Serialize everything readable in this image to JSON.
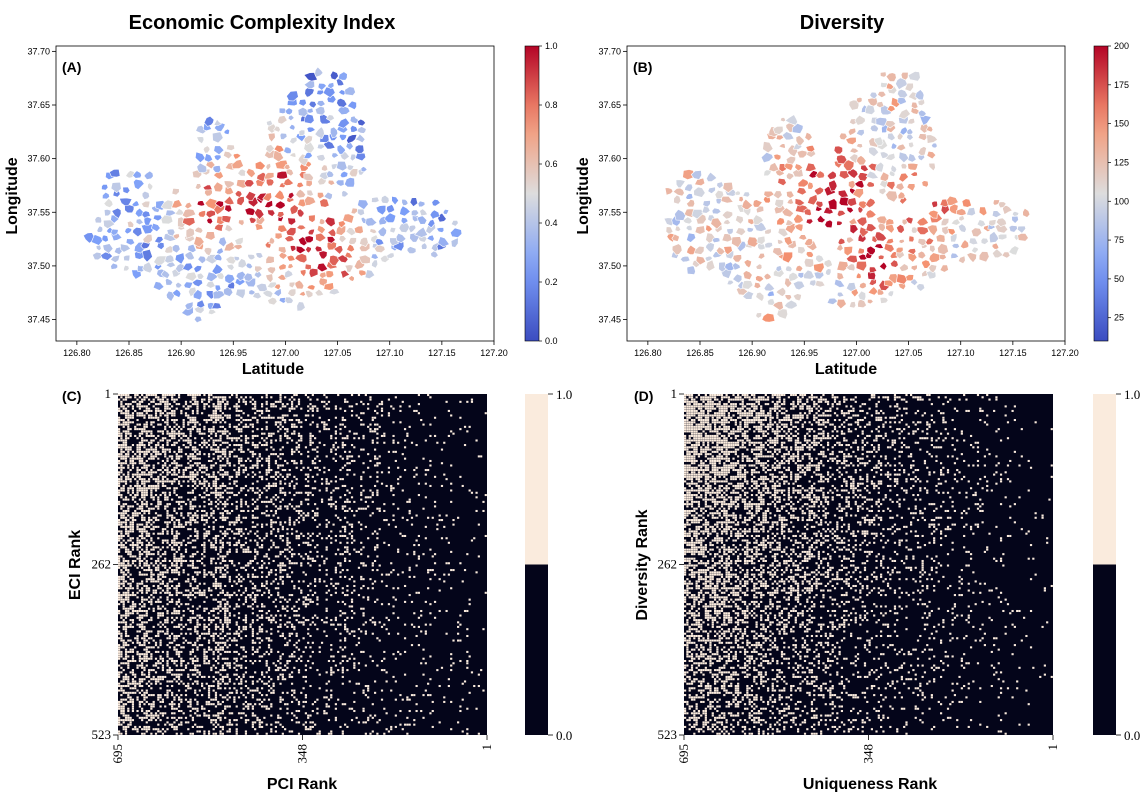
{
  "chart_data": [
    {
      "type": "choropleth-map",
      "title": "Economic  Complexity Index",
      "panel_label": "(A)",
      "xlabel": "Latitude",
      "ylabel": "Longitude",
      "xticks": [
        "126.80",
        "126.85",
        "126.90",
        "126.95",
        "127.00",
        "127.05",
        "127.10",
        "127.15",
        "127.20"
      ],
      "yticks": [
        "37.70",
        "37.65",
        "37.60",
        "37.55",
        "37.50",
        "37.45"
      ],
      "xlim": [
        126.78,
        127.2
      ],
      "ylim": [
        37.43,
        37.705
      ],
      "colorbar": {
        "ticks": [
          "1.0",
          "0.8",
          "0.6",
          "0.4",
          "0.2",
          "0.0"
        ],
        "min": 0,
        "max": 1,
        "colormap": "coolwarm"
      }
    },
    {
      "type": "choropleth-map",
      "title": "Diversity",
      "panel_label": "(B)",
      "xlabel": "Latitude",
      "ylabel": "Longitude",
      "xticks": [
        "126.80",
        "126.85",
        "126.90",
        "126.95",
        "127.00",
        "127.05",
        "127.10",
        "127.15",
        "127.20"
      ],
      "yticks": [
        "37.70",
        "37.65",
        "37.60",
        "37.55",
        "37.50",
        "37.45"
      ],
      "xlim": [
        126.78,
        127.2
      ],
      "ylim": [
        37.43,
        37.705
      ],
      "colorbar": {
        "ticks": [
          "200",
          "175",
          "150",
          "125",
          "100",
          "75",
          "50",
          "25"
        ],
        "min": 10,
        "max": 200,
        "colormap": "coolwarm"
      }
    },
    {
      "type": "heatmap",
      "panel_label": "(C)",
      "xlabel": "PCI Rank",
      "ylabel": "ECI Rank",
      "xticks": [
        "695",
        "348",
        "1"
      ],
      "yticks": [
        "1",
        "262",
        "523"
      ],
      "colorbar": {
        "ticks": [
          "1.0",
          "0.0"
        ],
        "values": [
          0,
          1
        ],
        "colors": [
          "#04051a",
          "#faebdd"
        ]
      },
      "density": "decreasing from left (PCI 695) to right (PCI 1), vertical banding"
    },
    {
      "type": "heatmap",
      "panel_label": "(D)",
      "xlabel": "Uniqueness Rank",
      "ylabel": "Diversity Rank",
      "xticks": [
        "695",
        "348",
        "1"
      ],
      "yticks": [
        "1",
        "262",
        "523"
      ],
      "colorbar": {
        "ticks": [
          "1.0",
          "0.0"
        ],
        "values": [
          0,
          1
        ],
        "colors": [
          "#04051a",
          "#faebdd"
        ]
      },
      "density": "decreasing from left (Uniqueness 695) to right, higher at top rows"
    }
  ]
}
